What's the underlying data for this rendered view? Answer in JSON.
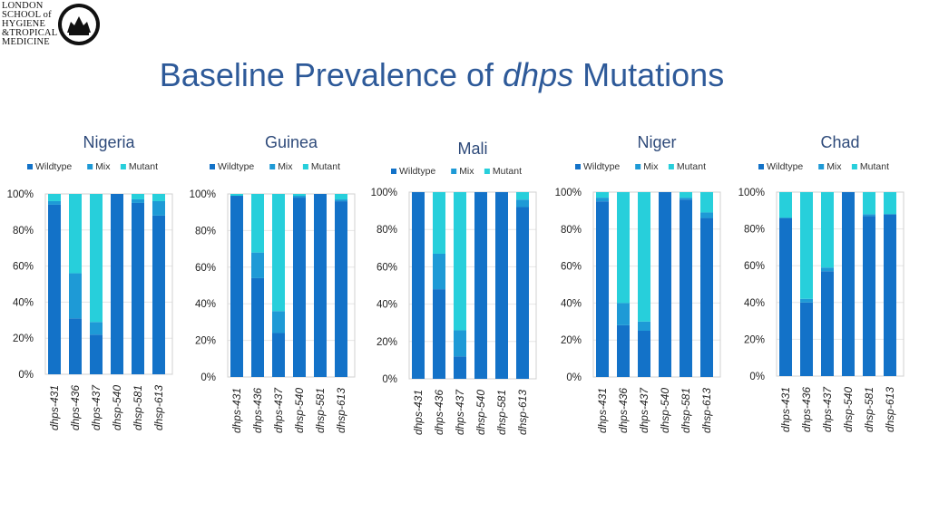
{
  "logo": {
    "lines": [
      "LONDON",
      "SCHOOL of",
      "HYGIENE",
      "&TROPICAL",
      "MEDICINE"
    ],
    "crest_icon": "crest-icon"
  },
  "slide": {
    "title_pre": "Baseline Prevalence of ",
    "title_italic": "dhps",
    "title_post": " Mutations"
  },
  "colors": {
    "wildtype": "#1372c8",
    "mix": "#1e9ad6",
    "mutant": "#27cfdb"
  },
  "chart_data": [
    {
      "type": "bar",
      "stacked": true,
      "title": "Nigeria",
      "categories": [
        "dhps-431",
        "dhps-436",
        "dhps-437",
        "dhsp-540",
        "dhsp-581",
        "dhsp-613"
      ],
      "series": [
        {
          "name": "Wildtype",
          "values": [
            94,
            31,
            22,
            100,
            95,
            88
          ]
        },
        {
          "name": "Mix",
          "values": [
            2,
            25,
            7,
            0,
            2,
            8
          ]
        },
        {
          "name": "Mutant",
          "values": [
            4,
            44,
            71,
            0,
            3,
            4
          ]
        }
      ],
      "ylim": [
        0,
        100
      ],
      "yticks": [
        "0%",
        "20%",
        "40%",
        "60%",
        "80%",
        "100%"
      ],
      "legend_position": "top"
    },
    {
      "type": "bar",
      "stacked": true,
      "title": "Guinea",
      "categories": [
        "dhps-431",
        "dhps-436",
        "dhps-437",
        "dhsp-540",
        "dhsp-581",
        "dhsp-613"
      ],
      "series": [
        {
          "name": "Wildtype",
          "values": [
            99,
            54,
            24,
            98,
            100,
            96
          ]
        },
        {
          "name": "Mix",
          "values": [
            0,
            14,
            12,
            1,
            0,
            1
          ]
        },
        {
          "name": "Mutant",
          "values": [
            1,
            32,
            64,
            1,
            0,
            3
          ]
        }
      ],
      "ylim": [
        0,
        100
      ],
      "yticks": [
        "0%",
        "20%",
        "40%",
        "60%",
        "80%",
        "100%"
      ],
      "legend_position": "top"
    },
    {
      "type": "bar",
      "stacked": true,
      "title": "Mali",
      "categories": [
        "dhps-431",
        "dhps-436",
        "dhps-437",
        "dhsp-540",
        "dhsp-581",
        "dhsp-613"
      ],
      "series": [
        {
          "name": "Wildtype",
          "values": [
            100,
            48,
            12,
            100,
            100,
            92
          ]
        },
        {
          "name": "Mix",
          "values": [
            0,
            19,
            14,
            0,
            0,
            4
          ]
        },
        {
          "name": "Mutant",
          "values": [
            0,
            33,
            74,
            0,
            0,
            4
          ]
        }
      ],
      "ylim": [
        0,
        100
      ],
      "yticks": [
        "0%",
        "20%",
        "40%",
        "60%",
        "80%",
        "100%"
      ],
      "legend_position": "top"
    },
    {
      "type": "bar",
      "stacked": true,
      "title": "Niger",
      "categories": [
        "dhps-431",
        "dhps-436",
        "dhps-437",
        "dhsp-540",
        "dhsp-581",
        "dhsp-613"
      ],
      "series": [
        {
          "name": "Wildtype",
          "values": [
            95,
            28,
            25,
            100,
            96,
            86
          ]
        },
        {
          "name": "Mix",
          "values": [
            2,
            12,
            5,
            0,
            1,
            3
          ]
        },
        {
          "name": "Mutant",
          "values": [
            3,
            60,
            70,
            0,
            3,
            11
          ]
        }
      ],
      "ylim": [
        0,
        100
      ],
      "yticks": [
        "0%",
        "20%",
        "40%",
        "60%",
        "80%",
        "100%"
      ],
      "legend_position": "top"
    },
    {
      "type": "bar",
      "stacked": true,
      "title": "Chad",
      "categories": [
        "dhps-431",
        "dhps-436",
        "dhps-437",
        "dhsp-540",
        "dhsp-581",
        "dhsp-613"
      ],
      "series": [
        {
          "name": "Wildtype",
          "values": [
            86,
            40,
            57,
            100,
            87,
            88
          ]
        },
        {
          "name": "Mix",
          "values": [
            0,
            2,
            2,
            0,
            1,
            0
          ]
        },
        {
          "name": "Mutant",
          "values": [
            14,
            58,
            41,
            0,
            12,
            12
          ]
        }
      ],
      "ylim": [
        0,
        100
      ],
      "yticks": [
        "0%",
        "20%",
        "40%",
        "60%",
        "80%",
        "100%"
      ],
      "legend_position": "top"
    }
  ]
}
